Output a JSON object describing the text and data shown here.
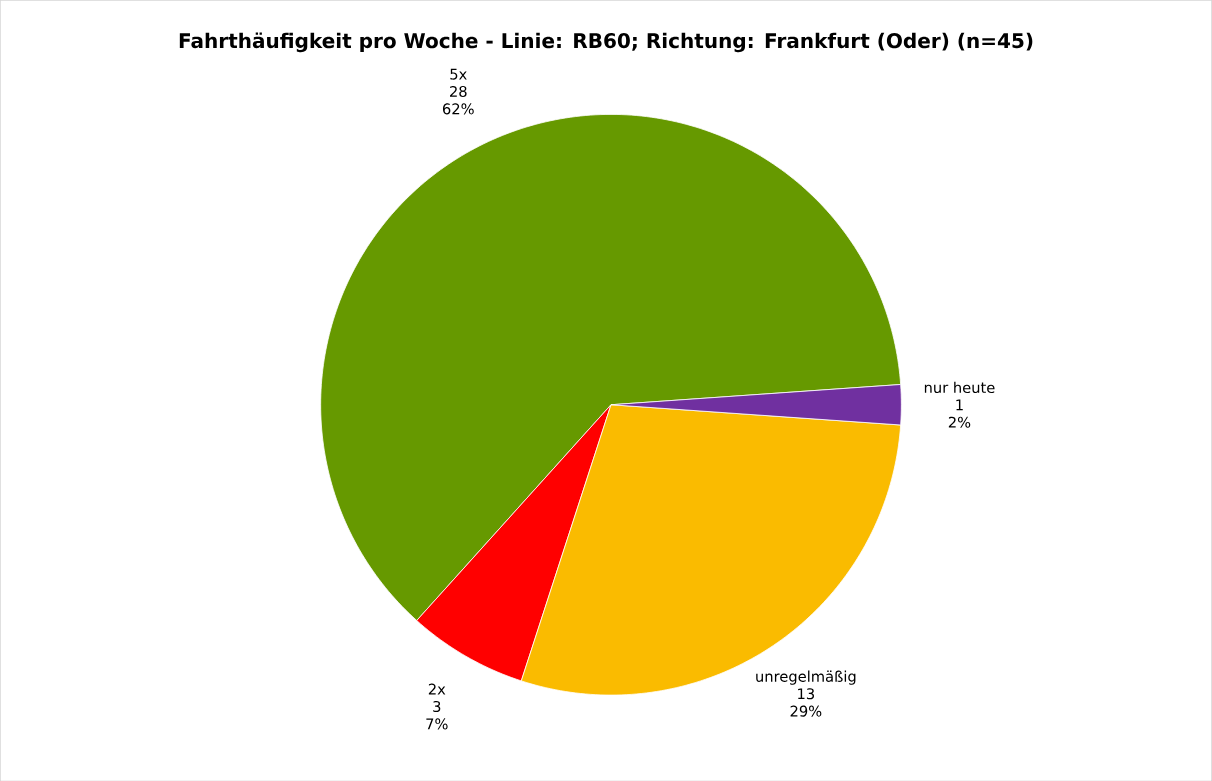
{
  "chart_data": {
    "type": "pie",
    "title": "Fahrthäufigkeit pro Woche - Linie: RB60; Richtung: Frankfurt (Oder) (n=45)",
    "categories": [
      "5x",
      "2x",
      "unregelmäßig",
      "nur heute"
    ],
    "values": [
      28,
      3,
      13,
      1
    ],
    "colors": [
      "#669900",
      "#ff0000",
      "#fabb00",
      "#7030a0"
    ],
    "value_labels": [
      "28",
      "3",
      "13",
      "1"
    ],
    "annotations": [
      {
        "text": "62%",
        "x": "5x"
      },
      {
        "text": "7%",
        "x": "2x"
      },
      {
        "text": "29%",
        "x": "unregelmäßig"
      },
      {
        "text": "2%",
        "x": "nur heute"
      }
    ]
  }
}
